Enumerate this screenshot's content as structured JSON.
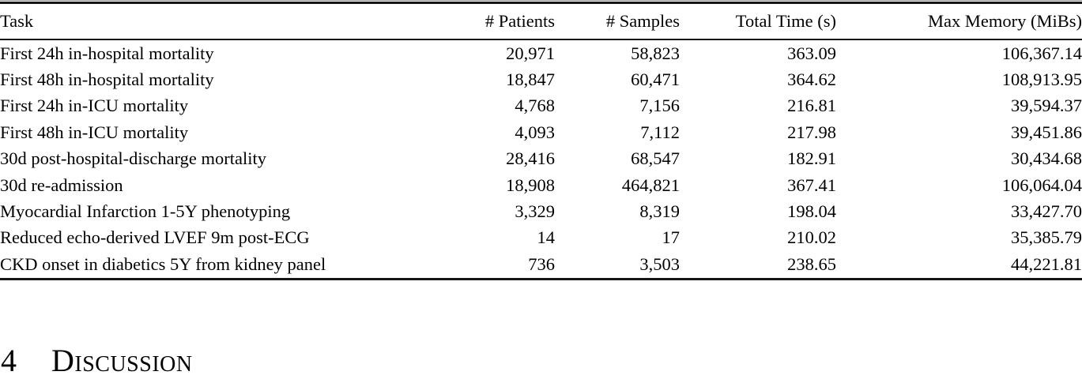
{
  "table": {
    "columns": [
      "Task",
      "# Patients",
      "# Samples",
      "Total Time (s)",
      "Max Memory (MiBs)"
    ],
    "rows": [
      {
        "task": "First 24h in-hospital mortality",
        "patients": "20,971",
        "samples": "58,823",
        "time": "363.09",
        "memory": "106,367.14"
      },
      {
        "task": "First 48h in-hospital mortality",
        "patients": "18,847",
        "samples": "60,471",
        "time": "364.62",
        "memory": "108,913.95"
      },
      {
        "task": "First 24h in-ICU mortality",
        "patients": "4,768",
        "samples": "7,156",
        "time": "216.81",
        "memory": "39,594.37"
      },
      {
        "task": "First 48h in-ICU mortality",
        "patients": "4,093",
        "samples": "7,112",
        "time": "217.98",
        "memory": "39,451.86"
      },
      {
        "task": "30d post-hospital-discharge mortality",
        "patients": "28,416",
        "samples": "68,547",
        "time": "182.91",
        "memory": "30,434.68"
      },
      {
        "task": "30d re-admission",
        "patients": "18,908",
        "samples": "464,821",
        "time": "367.41",
        "memory": "106,064.04"
      },
      {
        "task": "Myocardial Infarction 1-5Y phenotyping",
        "patients": "3,329",
        "samples": "8,319",
        "time": "198.04",
        "memory": "33,427.70"
      },
      {
        "task": "Reduced echo-derived LVEF 9m post-ECG",
        "patients": "14",
        "samples": "17",
        "time": "210.02",
        "memory": "35,385.79"
      },
      {
        "task": "CKD onset in diabetics 5Y from kidney panel",
        "patients": "736",
        "samples": "3,503",
        "time": "238.65",
        "memory": "44,221.81"
      }
    ]
  },
  "section": {
    "number": "4",
    "title": "Discussion"
  }
}
